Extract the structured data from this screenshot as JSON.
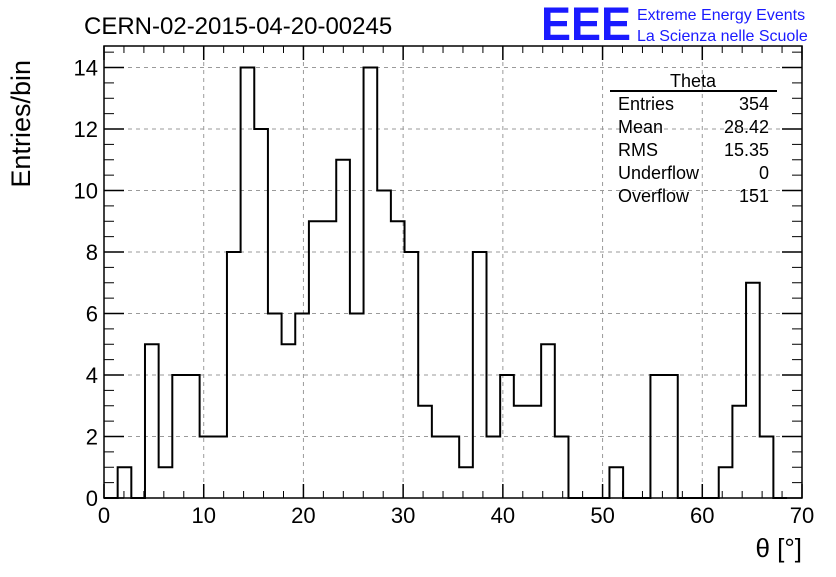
{
  "chart_data": {
    "type": "histogram",
    "title": "CERN-02-2015-04-20-00245",
    "xlabel": "θ [°]",
    "ylabel": "Entries/bin",
    "xlim": [
      0,
      70
    ],
    "ylim": [
      0,
      14.7
    ],
    "grid": true,
    "bin_width": 1.37,
    "values": [
      0,
      1,
      0,
      5,
      1,
      4,
      4,
      2,
      2,
      8,
      14,
      12,
      6,
      5,
      6,
      9,
      9,
      11,
      6,
      14,
      10,
      9,
      8,
      3,
      2,
      2,
      1,
      8,
      2,
      4,
      3,
      3,
      5,
      2,
      0,
      0,
      0,
      1,
      0,
      0,
      4,
      4,
      0,
      0,
      0,
      1,
      3,
      7,
      2,
      0
    ],
    "x_ticks": [
      0,
      10,
      20,
      30,
      40,
      50,
      60,
      70
    ],
    "y_ticks": [
      0,
      2,
      4,
      6,
      8,
      10,
      12,
      14
    ],
    "stats_box": {
      "title": "Theta",
      "rows": [
        {
          "label": "Entries",
          "value": "354"
        },
        {
          "label": "Mean",
          "value": "28.42"
        },
        {
          "label": "RMS",
          "value": "15.35"
        },
        {
          "label": "Underflow",
          "value": "0"
        },
        {
          "label": "Overflow",
          "value": "151"
        }
      ],
      "position": "top-right"
    }
  },
  "logo": {
    "text": "EEE",
    "line1": "Extreme Energy Events",
    "line2": "La Scienza nelle Scuole",
    "color": "#1a1aff"
  }
}
